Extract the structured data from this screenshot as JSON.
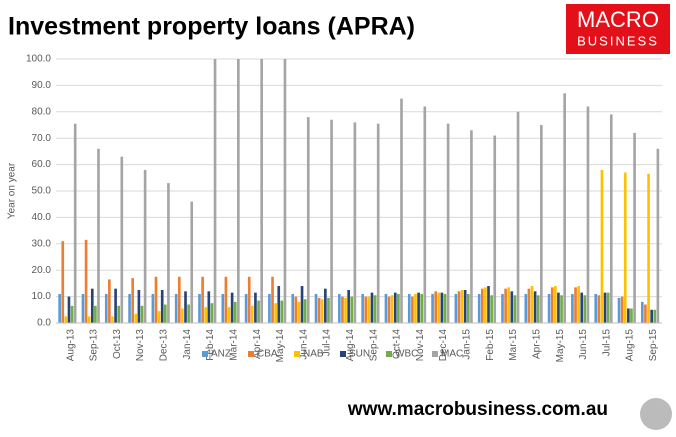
{
  "chart_data": {
    "type": "bar",
    "title": "Investment property loans (APRA)",
    "ylabel": "Year on year",
    "categories": [
      "Aug-13",
      "Sep-13",
      "Oct-13",
      "Nov-13",
      "Dec-13",
      "Jan-14",
      "Feb-14",
      "Mar-14",
      "Apr-14",
      "May-14",
      "Jun-14",
      "Jul-14",
      "Aug-14",
      "Sep-14",
      "Oct-14",
      "Nov-14",
      "Dec-14",
      "Jan-15",
      "Feb-15",
      "Mar-15",
      "Apr-15",
      "May-15",
      "Jun-15",
      "Jul-15",
      "Aug-15",
      "Sep-15"
    ],
    "series": [
      {
        "name": "ANZ",
        "color": "#5b9bd5",
        "values": [
          11,
          11,
          11,
          11,
          11,
          11,
          11,
          11,
          11,
          11,
          11,
          11,
          11,
          11,
          11,
          11,
          11,
          11,
          11,
          11,
          11,
          11,
          11,
          11,
          9.5,
          8
        ]
      },
      {
        "name": "CBA",
        "color": "#ed7d31",
        "values": [
          31,
          31.5,
          16.5,
          17,
          17.5,
          17.5,
          17.5,
          17.5,
          17.5,
          17.5,
          10,
          9.5,
          10,
          10,
          10,
          10,
          12,
          12,
          13,
          13,
          13,
          13.5,
          13.5,
          10.5,
          10,
          7
        ]
      },
      {
        "name": "NAB",
        "color": "#ffc000",
        "values": [
          2.5,
          2.5,
          2.5,
          3.5,
          4.5,
          5.5,
          6,
          6,
          6.5,
          7.5,
          8,
          9,
          9.5,
          10,
          10.5,
          11,
          11.5,
          12.5,
          13.5,
          13.5,
          14,
          14,
          14,
          58,
          57,
          56.5
        ]
      },
      {
        "name": "SUN",
        "color": "#264478",
        "values": [
          10,
          13,
          13,
          12.5,
          12.5,
          12,
          12,
          11.5,
          11.5,
          14,
          14,
          13,
          12.5,
          11.5,
          11.5,
          11.5,
          11.5,
          12.5,
          14,
          12,
          12,
          11.5,
          11.5,
          11.5,
          5.5,
          5
        ]
      },
      {
        "name": "WBC",
        "color": "#70ad47",
        "values": [
          6.5,
          6.5,
          6.5,
          6.5,
          7,
          7,
          7.5,
          8,
          8.5,
          8.5,
          9,
          9.5,
          10,
          10.5,
          11,
          11,
          11,
          11,
          10.5,
          10.5,
          10.5,
          10.5,
          10.5,
          11.5,
          5.5,
          5
        ]
      },
      {
        "name": "MAC",
        "color": "#a5a5a5",
        "values": [
          75.5,
          66,
          63,
          58,
          53,
          46,
          100,
          100,
          100,
          100,
          78,
          77,
          76,
          75.5,
          85,
          82,
          75.5,
          73,
          71,
          80,
          75,
          87,
          82,
          79,
          72,
          66
        ]
      }
    ],
    "ylim": [
      0,
      100
    ],
    "yticks": [
      {
        "value": 0,
        "label": "0.0"
      },
      {
        "value": 10,
        "label": "10.0"
      },
      {
        "value": 20,
        "label": "20.0"
      },
      {
        "value": 30,
        "label": "30.0"
      },
      {
        "value": 40,
        "label": "40.0"
      },
      {
        "value": 50,
        "label": "50.0"
      },
      {
        "value": 60,
        "label": "60.0"
      },
      {
        "value": 70,
        "label": "70.0"
      },
      {
        "value": 80,
        "label": "80.0"
      },
      {
        "value": 90,
        "label": "90.0"
      },
      {
        "value": 100,
        "label": "100.0"
      }
    ],
    "grid": true,
    "legend": "bottom"
  },
  "logo": {
    "line1": "MACRO",
    "line2": "BUSINESS"
  },
  "footer": "www.macrobusiness.com.au"
}
